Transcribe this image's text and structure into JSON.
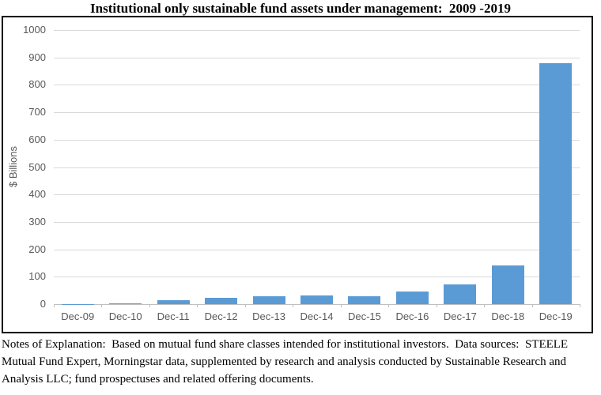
{
  "title": "Institutional only sustainable fund assets under management:  2009 -2019",
  "notes": "Notes of Explanation:  Based on mutual fund share classes intended for institutional investors.  Data sources:  STEELE Mutual Fund Expert, Morningstar data, supplemented by research and analysis conducted by Sustainable Research and Analysis LLC; fund prospectuses and related offering documents.",
  "chart_data": {
    "type": "bar",
    "title": "Institutional only sustainable fund assets under management:  2009 -2019",
    "categories": [
      "Dec-09",
      "Dec-10",
      "Dec-11",
      "Dec-12",
      "Dec-13",
      "Dec-14",
      "Dec-15",
      "Dec-16",
      "Dec-17",
      "Dec-18",
      "Dec-19"
    ],
    "values": [
      1,
      2,
      15,
      24,
      30,
      31,
      28,
      46,
      72,
      141,
      878
    ],
    "xlabel": "",
    "ylabel": "$ Billions",
    "ylim": [
      0,
      1000
    ],
    "ytick_step": 100,
    "grid": true,
    "legend": false,
    "colors": {
      "bar": "#5B9BD5",
      "gridline": "#D9D9D9",
      "axis": "#BFBFBF",
      "tick_label": "#595959",
      "chart_border": "#000000",
      "title_text": "#000000"
    }
  }
}
